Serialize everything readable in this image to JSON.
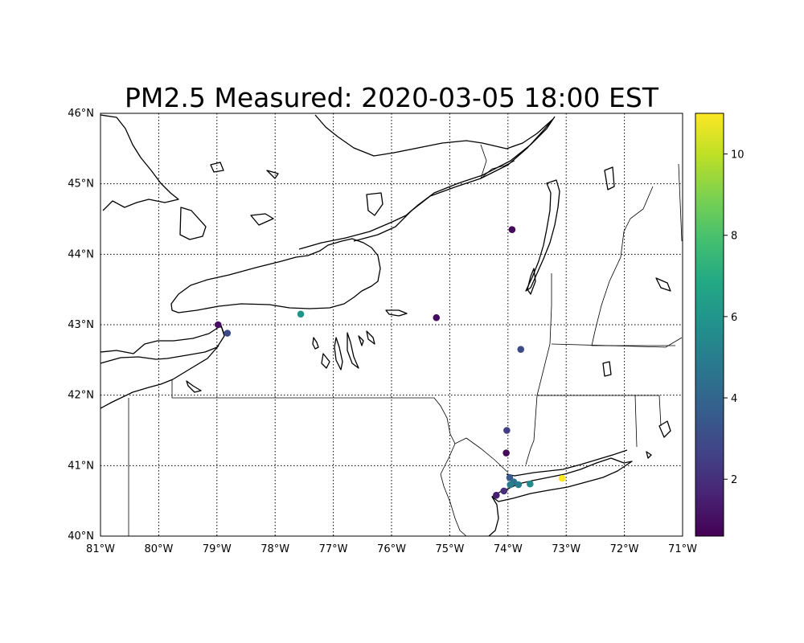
{
  "chart_data": {
    "type": "scatter",
    "title": "PM2.5 Measured: 2020-03-05 18:00 EST",
    "xlim": [
      -81,
      -71
    ],
    "ylim": [
      40,
      46
    ],
    "grid": true,
    "x_ticks": [
      {
        "value": -81,
        "label": "81°W"
      },
      {
        "value": -80,
        "label": "80°W"
      },
      {
        "value": -79,
        "label": "79°W"
      },
      {
        "value": -78,
        "label": "78°W"
      },
      {
        "value": -77,
        "label": "77°W"
      },
      {
        "value": -76,
        "label": "76°W"
      },
      {
        "value": -75,
        "label": "75°W"
      },
      {
        "value": -74,
        "label": "74°W"
      },
      {
        "value": -73,
        "label": "73°W"
      },
      {
        "value": -72,
        "label": "72°W"
      },
      {
        "value": -71,
        "label": "71°W"
      }
    ],
    "y_ticks": [
      {
        "value": 40,
        "label": "40°N"
      },
      {
        "value": 41,
        "label": "41°N"
      },
      {
        "value": 42,
        "label": "42°N"
      },
      {
        "value": 43,
        "label": "43°N"
      },
      {
        "value": 44,
        "label": "44°N"
      },
      {
        "value": 45,
        "label": "45°N"
      },
      {
        "value": 46,
        "label": "46°N"
      }
    ],
    "colorbar": {
      "colormap": "viridis",
      "range": [
        0.6,
        11.0
      ],
      "ticks": [
        {
          "value": 2,
          "label": "2"
        },
        {
          "value": 4,
          "label": "4"
        },
        {
          "value": 6,
          "label": "6"
        },
        {
          "value": 8,
          "label": "8"
        },
        {
          "value": 10,
          "label": "10"
        }
      ]
    },
    "points": [
      {
        "lon": -78.98,
        "lat": 43.0,
        "value": 1.0
      },
      {
        "lon": -78.82,
        "lat": 42.88,
        "value": 3.0
      },
      {
        "lon": -77.56,
        "lat": 43.15,
        "value": 6.0
      },
      {
        "lon": -75.23,
        "lat": 43.1,
        "value": 0.9
      },
      {
        "lon": -73.93,
        "lat": 44.35,
        "value": 0.8
      },
      {
        "lon": -73.78,
        "lat": 42.65,
        "value": 3.0
      },
      {
        "lon": -74.02,
        "lat": 41.5,
        "value": 2.5
      },
      {
        "lon": -74.03,
        "lat": 41.18,
        "value": 0.8
      },
      {
        "lon": -73.97,
        "lat": 40.83,
        "value": 3.5
      },
      {
        "lon": -73.9,
        "lat": 40.77,
        "value": 4.5
      },
      {
        "lon": -73.96,
        "lat": 40.73,
        "value": 5.0
      },
      {
        "lon": -73.82,
        "lat": 40.73,
        "value": 5.0
      },
      {
        "lon": -73.62,
        "lat": 40.74,
        "value": 5.5
      },
      {
        "lon": -74.07,
        "lat": 40.64,
        "value": 2.0
      },
      {
        "lon": -74.2,
        "lat": 40.58,
        "value": 1.5
      },
      {
        "lon": -73.07,
        "lat": 40.82,
        "value": 11.0
      }
    ]
  }
}
